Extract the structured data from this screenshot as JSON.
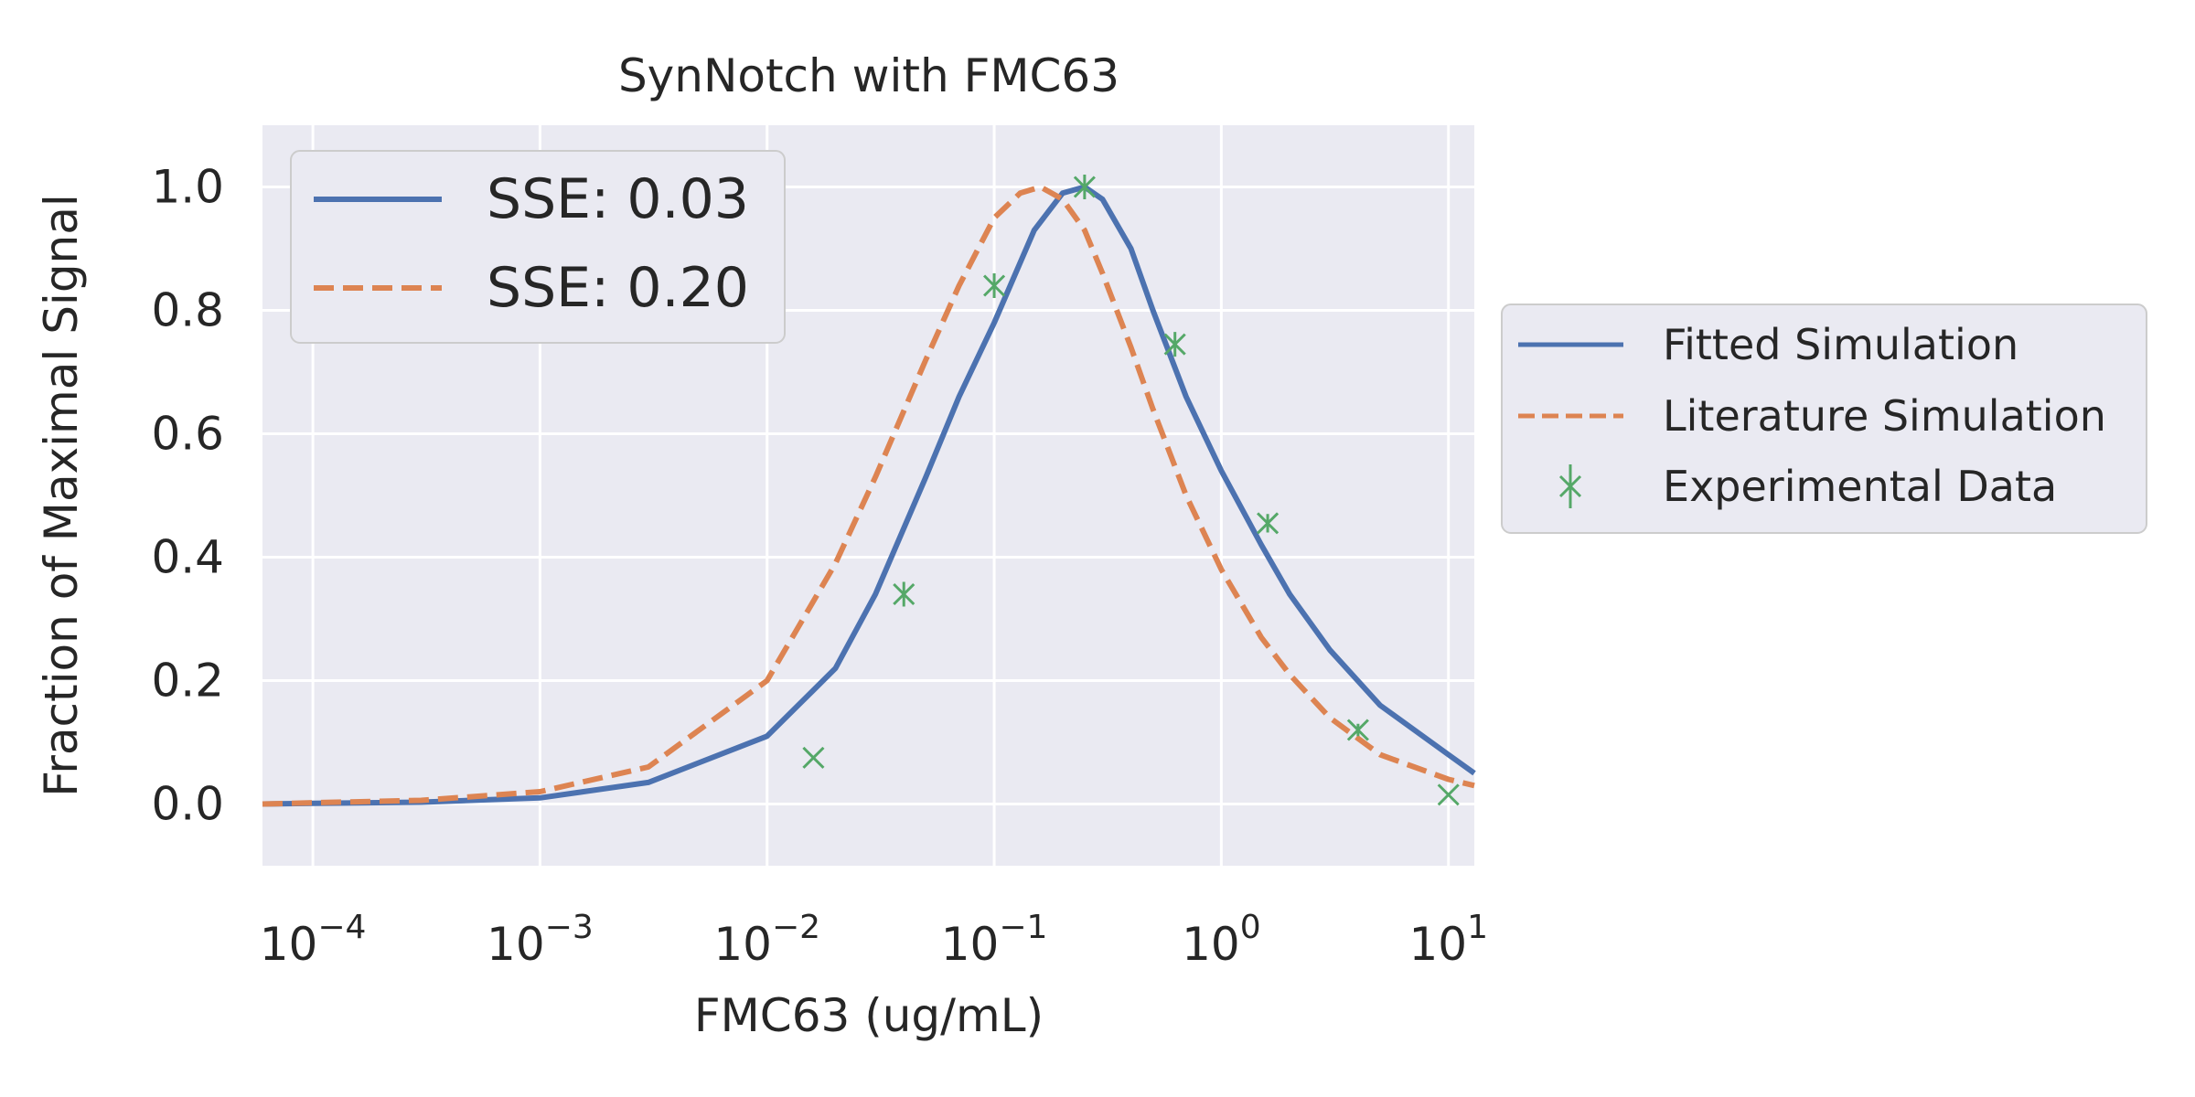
{
  "chart_data": {
    "type": "line",
    "title": "SynNotch with FMC63",
    "xlabel": "FMC63 (ug/mL)",
    "ylabel": "Fraction of Maximal Signal",
    "x_scale": "log",
    "xlim": [
      6e-05,
      13
    ],
    "ylim": [
      -0.1,
      1.1
    ],
    "x_ticks": [
      {
        "value": 0.0001,
        "base": "10",
        "exp": "−4"
      },
      {
        "value": 0.001,
        "base": "10",
        "exp": "−3"
      },
      {
        "value": 0.01,
        "base": "10",
        "exp": "−2"
      },
      {
        "value": 0.1,
        "base": "10",
        "exp": "−1"
      },
      {
        "value": 1,
        "base": "10",
        "exp": "0"
      },
      {
        "value": 10,
        "base": "10",
        "exp": "1"
      }
    ],
    "y_ticks": [
      {
        "value": 0.0,
        "label": "0.0"
      },
      {
        "value": 0.2,
        "label": "0.2"
      },
      {
        "value": 0.4,
        "label": "0.4"
      },
      {
        "value": 0.6,
        "label": "0.6"
      },
      {
        "value": 0.8,
        "label": "0.8"
      },
      {
        "value": 1.0,
        "label": "1.0"
      }
    ],
    "grid": true,
    "series": [
      {
        "name": "Fitted Simulation",
        "kind": "line",
        "style": "solid",
        "color": "#4c72b0",
        "x": [
          6e-05,
          0.0001,
          0.0003,
          0.001,
          0.003,
          0.01,
          0.02,
          0.03,
          0.05,
          0.07,
          0.1,
          0.15,
          0.2,
          0.25,
          0.3,
          0.4,
          0.5,
          0.7,
          1,
          1.5,
          2,
          3,
          5,
          10,
          13
        ],
        "y": [
          0.0,
          0.001,
          0.003,
          0.01,
          0.035,
          0.11,
          0.22,
          0.34,
          0.53,
          0.66,
          0.78,
          0.93,
          0.99,
          1.0,
          0.98,
          0.9,
          0.8,
          0.66,
          0.54,
          0.42,
          0.34,
          0.25,
          0.16,
          0.08,
          0.05
        ]
      },
      {
        "name": "Literature Simulation",
        "kind": "line",
        "style": "dashed",
        "color": "#dd8452",
        "x": [
          6e-05,
          0.0001,
          0.0003,
          0.001,
          0.003,
          0.01,
          0.02,
          0.03,
          0.05,
          0.07,
          0.1,
          0.13,
          0.16,
          0.2,
          0.25,
          0.3,
          0.4,
          0.5,
          0.7,
          1,
          1.5,
          2,
          3,
          5,
          10,
          13
        ],
        "y": [
          0.0,
          0.002,
          0.006,
          0.02,
          0.06,
          0.2,
          0.39,
          0.53,
          0.72,
          0.84,
          0.95,
          0.99,
          1.0,
          0.98,
          0.93,
          0.86,
          0.74,
          0.64,
          0.5,
          0.38,
          0.27,
          0.21,
          0.14,
          0.08,
          0.04,
          0.03
        ]
      },
      {
        "name": "Experimental Data",
        "kind": "errorbar",
        "color": "#55a868",
        "x": [
          0.016,
          0.04,
          0.1,
          0.25,
          0.625,
          1.6,
          4,
          10
        ],
        "y": [
          0.075,
          0.34,
          0.84,
          1.0,
          0.745,
          0.455,
          0.12,
          0.015
        ],
        "yerr": [
          0.0,
          0.02,
          0.02,
          0.02,
          0.02,
          0.015,
          0.01,
          0.0
        ]
      }
    ],
    "legend_inset": [
      {
        "label": "SSE: 0.03",
        "style": "solid",
        "color": "#4c72b0"
      },
      {
        "label": "SSE: 0.20",
        "style": "dashed",
        "color": "#dd8452"
      }
    ],
    "legend_placement": "outside-right",
    "inset_legend_placement": "top-left"
  }
}
